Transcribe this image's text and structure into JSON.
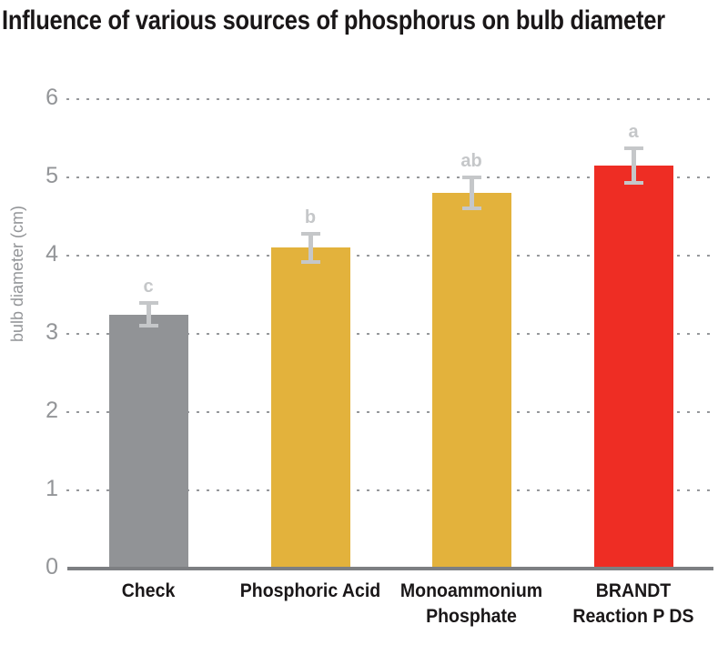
{
  "page": {
    "background": "#ffffff"
  },
  "chart_data": {
    "type": "bar",
    "title": "Influence of various sources of phosphorus on bulb diameter",
    "ylabel": "bulb diameter (cm)",
    "xlabel": "",
    "categories": [
      "Check",
      "Phosphoric Acid",
      "Monoammonium\nPhosphate",
      "BRANDT\nReaction P DS"
    ],
    "values": [
      3.25,
      4.1,
      4.8,
      5.15
    ],
    "error_bars": [
      0.17,
      0.2,
      0.22,
      0.24
    ],
    "significance_letters": [
      "c",
      "b",
      "ab",
      "a"
    ],
    "bar_colors": [
      "#919396",
      "#e3b23c",
      "#e3b23c",
      "#ee2d24"
    ],
    "ylim": [
      0,
      6
    ],
    "yticks": [
      0,
      1,
      2,
      3,
      4,
      5,
      6
    ],
    "grid": "horizontal-dotted",
    "legend": "none",
    "theme": {
      "title_color": "#1a1718",
      "category_label_color": "#1a1718",
      "tick_label_color": "#939598",
      "axis_line_color": "#7d7f82",
      "grid_dot_color": "#96989b",
      "error_bar_color": "#c5c7c9",
      "sig_letter_color": "#c5c7c9",
      "background": "#ffffff"
    }
  }
}
